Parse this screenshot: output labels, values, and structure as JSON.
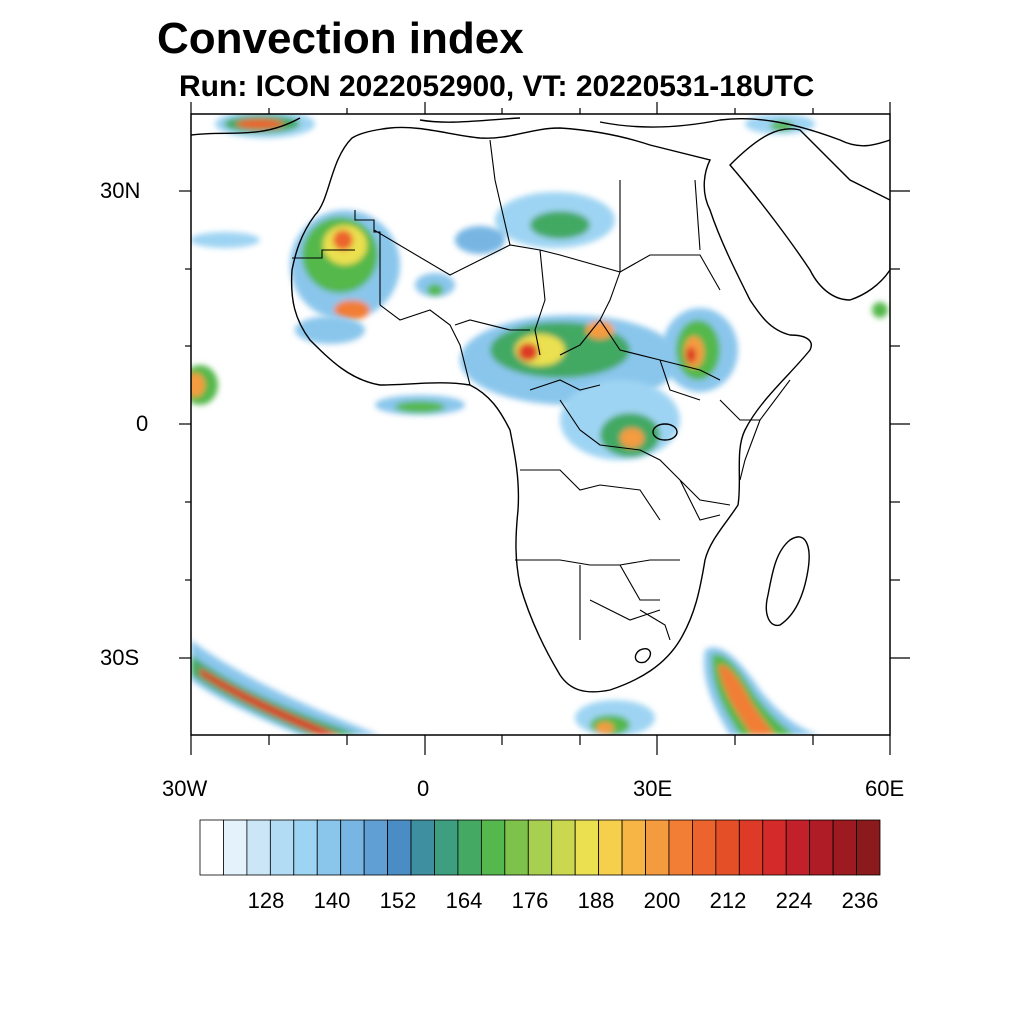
{
  "title": "Convection index",
  "subtitle": "Run: ICON 2022052900,  VT: 20220531-18UTC",
  "axes": {
    "lat_labels": [
      "30N",
      "0",
      "30S"
    ],
    "lon_labels": [
      "30W",
      "0",
      "30E",
      "60E"
    ]
  },
  "colorbar": {
    "labels": [
      "128",
      "140",
      "152",
      "164",
      "176",
      "188",
      "200",
      "212",
      "224",
      "236"
    ],
    "colors": [
      "#ffffff",
      "#e4f2fb",
      "#cae6f7",
      "#b2dcf4",
      "#9ed4f3",
      "#8ac6ec",
      "#77b6e3",
      "#5f9fd3",
      "#4a8cc4",
      "#3e8f9f",
      "#3d9e80",
      "#43a963",
      "#55b84c",
      "#7ec24b",
      "#a8cf4f",
      "#cad84f",
      "#ebe050",
      "#f6cf4c",
      "#f7b546",
      "#f59b3f",
      "#f27e35",
      "#ec632d",
      "#e44f28",
      "#dd3b27",
      "#d42a29",
      "#c2202a",
      "#b01c25",
      "#9d1a20",
      "#8a1a1b"
    ]
  }
}
